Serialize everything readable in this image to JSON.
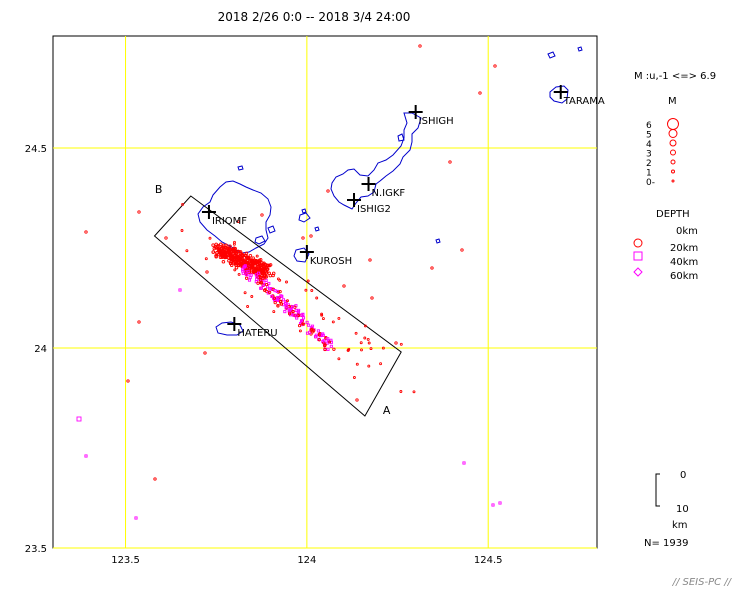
{
  "title": "2018 2/26 0:0 -- 2018 3/4 24:00",
  "colors": {
    "grid": "#ffff00",
    "coast": "#0000cc",
    "shallow": "#ff0000",
    "deep": "#ff00ff",
    "frame": "#000000"
  },
  "map": {
    "lon_range": [
      123.3,
      124.8
    ],
    "lat_range": [
      23.5,
      24.78
    ],
    "x_ticks": [
      {
        "value": 123.5,
        "label": "123.5"
      },
      {
        "value": 124.0,
        "label": "124"
      },
      {
        "value": 124.5,
        "label": "124.5"
      }
    ],
    "y_ticks": [
      {
        "value": 24.5,
        "label": "24.5"
      },
      {
        "value": 24.0,
        "label": "24"
      },
      {
        "value": 23.5,
        "label": "23.5"
      }
    ]
  },
  "stations": [
    {
      "name": "ISHIGH",
      "lon": 124.3,
      "lat": 24.59
    },
    {
      "name": "TARAMA",
      "lon": 124.7,
      "lat": 24.64
    },
    {
      "name": "N.IGKF",
      "lon": 124.17,
      "lat": 24.41
    },
    {
      "name": "ISHIG2",
      "lon": 124.13,
      "lat": 24.37
    },
    {
      "name": "IRIOMF",
      "lon": 123.73,
      "lat": 24.34
    },
    {
      "name": "KUROSH",
      "lon": 124.0,
      "lat": 24.24
    },
    {
      "name": "HATERU",
      "lon": 123.8,
      "lat": 24.06
    }
  ],
  "cross_section": {
    "label_a": "A",
    "label_b": "B",
    "corners": [
      {
        "lon": 123.58,
        "lat": 24.28
      },
      {
        "lon": 123.68,
        "lat": 24.38
      },
      {
        "lon": 124.26,
        "lat": 23.99
      },
      {
        "lon": 124.16,
        "lat": 23.83
      }
    ]
  },
  "legend": {
    "magnitude_header": "M :u,-1 <=> 6.9",
    "magnitude_title": "M",
    "magnitude_labels": [
      "6",
      "5",
      "4",
      "3",
      "2",
      "1",
      "0-"
    ],
    "depth_title": "DEPTH",
    "depth_labels": [
      "0km",
      "20km",
      "40km",
      "60km"
    ],
    "scale_top": "0",
    "scale_bottom": "10",
    "scale_unit": "km",
    "count": "N= 1939"
  },
  "footer": "// SEIS-PC //"
}
